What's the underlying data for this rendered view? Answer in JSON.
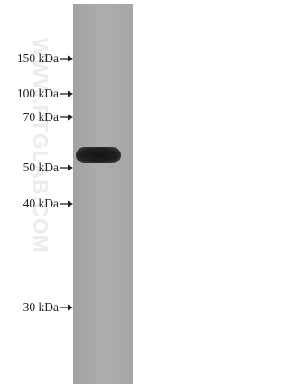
{
  "markers": [
    {
      "label": "150 kDa"
    },
    {
      "label": "100 kDa"
    },
    {
      "label": "70 kDa"
    },
    {
      "label": "50 kDa"
    },
    {
      "label": "40 kDa"
    },
    {
      "label": "30 kDa"
    }
  ],
  "watermark": "WWW.PTGLAB.COM"
}
